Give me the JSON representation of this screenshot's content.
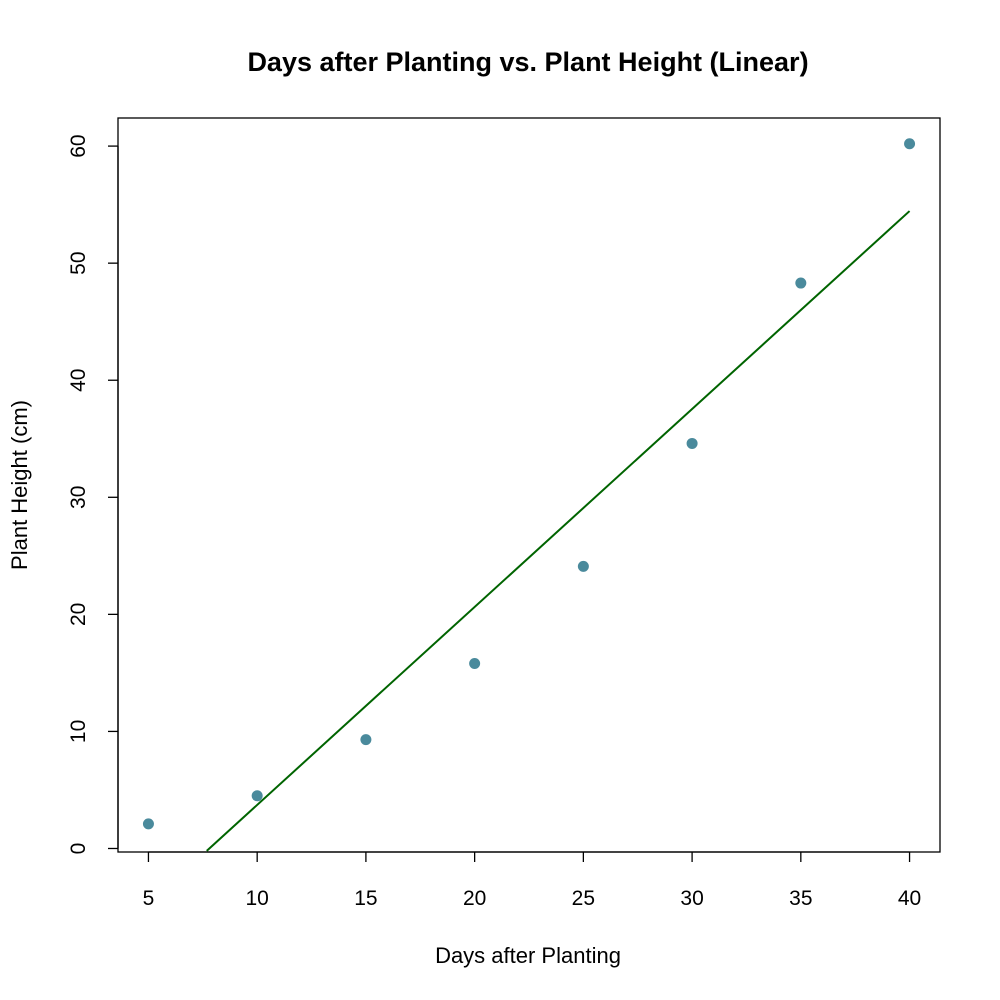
{
  "chart_data": {
    "type": "scatter",
    "title": "Days after Planting vs. Plant Height (Linear)",
    "xlabel": "Days after Planting",
    "ylabel": "Plant Height (cm)",
    "xlim": [
      3.6,
      41.4
    ],
    "ylim": [
      -0.3,
      62.4
    ],
    "x_ticks": [
      5,
      10,
      15,
      20,
      25,
      30,
      35,
      40
    ],
    "y_ticks": [
      0,
      10,
      20,
      30,
      40,
      50,
      60
    ],
    "grid": false,
    "series": [
      {
        "type": "scatter",
        "x": [
          5,
          10,
          15,
          20,
          25,
          30,
          35,
          40
        ],
        "y": [
          2.1,
          4.5,
          9.3,
          15.8,
          24.1,
          34.6,
          48.3,
          60.2
        ],
        "color": "#4a8a9c"
      }
    ],
    "fit_line": {
      "type": "line",
      "x": [
        7.68,
        40
      ],
      "y": [
        -0.2,
        54.45
      ],
      "color": "#006400"
    }
  }
}
